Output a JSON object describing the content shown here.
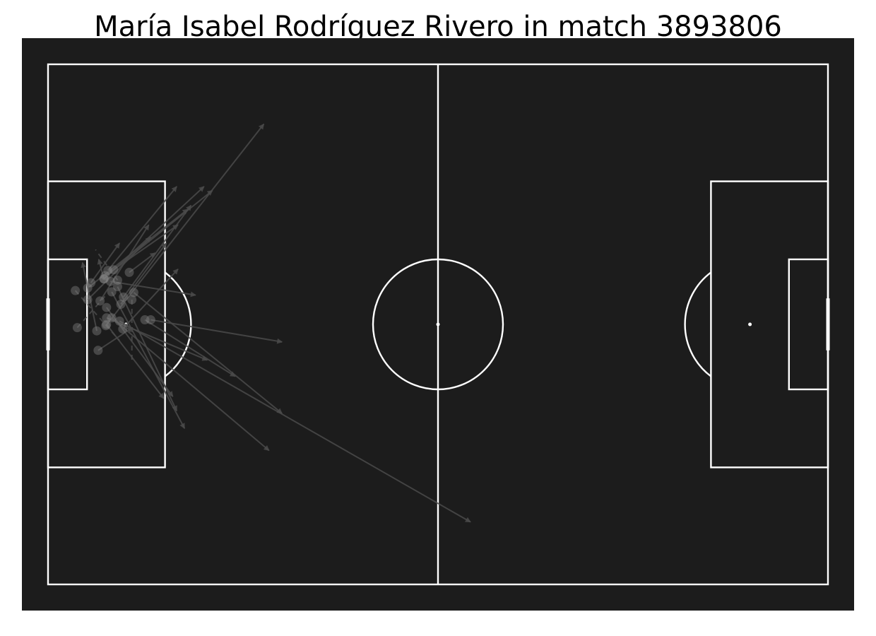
{
  "chart_data": {
    "type": "scatter",
    "title": "María Isabel Rodríguez Rivero in match 3893806",
    "xlim": [
      0,
      120
    ],
    "ylim": [
      0,
      80
    ],
    "colors": {
      "background": "#1c1c1c",
      "lines": "#ffffff",
      "pass": "#4a4a4a",
      "marker": "#8a8a8a"
    },
    "passes": [
      {
        "x": 6.1,
        "y": 36.2,
        "end_x": 15.8,
        "end_y": 26.6,
        "dashed": false
      },
      {
        "x": 8.0,
        "y": 36.4,
        "end_x": 15.5,
        "end_y": 24.7,
        "dashed": false
      },
      {
        "x": 8.8,
        "y": 32.5,
        "end_x": 20.0,
        "end_y": 24.7,
        "dashed": false
      },
      {
        "x": 9.6,
        "y": 33.4,
        "end_x": 22.7,
        "end_y": 35.5,
        "dashed": false
      },
      {
        "x": 11.5,
        "y": 40.7,
        "end_x": 20.0,
        "end_y": 31.5,
        "dashed": false
      },
      {
        "x": 7.5,
        "y": 41.0,
        "end_x": 5.3,
        "end_y": 30.5,
        "dashed": false
      },
      {
        "x": 9.0,
        "y": 39.0,
        "end_x": 24.5,
        "end_y": 45.5,
        "dashed": false
      },
      {
        "x": 14.9,
        "y": 39.3,
        "end_x": 28.8,
        "end_y": 48.0,
        "dashed": false
      },
      {
        "x": 15.8,
        "y": 39.3,
        "end_x": 36.0,
        "end_y": 42.7,
        "dashed": false
      },
      {
        "x": 13.2,
        "y": 35.1,
        "end_x": 36.0,
        "end_y": 53.7,
        "dashed": false
      },
      {
        "x": 9.8,
        "y": 39.0,
        "end_x": 34.0,
        "end_y": 59.4,
        "dashed": false
      },
      {
        "x": 11.0,
        "y": 39.5,
        "end_x": 65.0,
        "end_y": 70.4,
        "dashed": false
      },
      {
        "x": 9.0,
        "y": 40.0,
        "end_x": 17.8,
        "end_y": 51.4,
        "dashed": false
      },
      {
        "x": 9.8,
        "y": 35.0,
        "end_x": 21.0,
        "end_y": 56.0,
        "dashed": false
      },
      {
        "x": 10.7,
        "y": 34.2,
        "end_x": 19.8,
        "end_y": 53.3,
        "dashed": false
      },
      {
        "x": 9.0,
        "y": 37.4,
        "end_x": 19.2,
        "end_y": 51.1,
        "dashed": false
      },
      {
        "x": 8.6,
        "y": 33.0,
        "end_x": 24.0,
        "end_y": 18.8,
        "dashed": false
      },
      {
        "x": 9.2,
        "y": 31.7,
        "end_x": 19.8,
        "end_y": 18.8,
        "dashed": false
      },
      {
        "x": 11.2,
        "y": 36.9,
        "end_x": 18.2,
        "end_y": 27.5,
        "dashed": false
      },
      {
        "x": 8.9,
        "y": 40.2,
        "end_x": 33.2,
        "end_y": 9.2,
        "dashed": false
      },
      {
        "x": 10.1,
        "y": 31.6,
        "end_x": 25.3,
        "end_y": 19.4,
        "dashed": false
      },
      {
        "x": 11.6,
        "y": 35.8,
        "end_x": 22.0,
        "end_y": 21.7,
        "dashed": false
      },
      {
        "x": 6.1,
        "y": 34.4,
        "end_x": 21.5,
        "end_y": 22.3,
        "dashed": false
      },
      {
        "x": 12.5,
        "y": 32.0,
        "end_x": 16.5,
        "end_y": 29.0,
        "dashed": false
      },
      {
        "x": 6.6,
        "y": 33.6,
        "end_x": 11.0,
        "end_y": 27.5,
        "dashed": false
      },
      {
        "x": 7.7,
        "y": 44.0,
        "end_x": 13.0,
        "end_y": 40.5,
        "dashed": false
      },
      {
        "x": 4.5,
        "y": 40.5,
        "end_x": 9.1,
        "end_y": 35.3,
        "dashed": true
      },
      {
        "x": 12.9,
        "y": 36.2,
        "end_x": 12.9,
        "end_y": 45.5,
        "dashed": true
      },
      {
        "x": 4.2,
        "y": 34.8,
        "end_x": 11.0,
        "end_y": 42.5,
        "dashed": true
      },
      {
        "x": 10.7,
        "y": 33.2,
        "end_x": 7.3,
        "end_y": 28.5,
        "dashed": true
      },
      {
        "x": 8.6,
        "y": 33.0,
        "end_x": 7.8,
        "end_y": 30.0,
        "dashed": false
      }
    ]
  }
}
